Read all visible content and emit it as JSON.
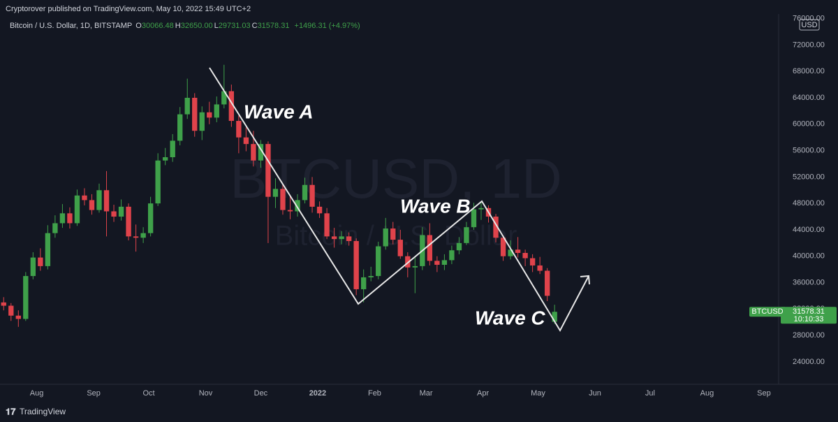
{
  "header": {
    "publisher_line": "Cryptorover published on TradingView.com, May 10, 2022 15:49 UTC+2",
    "symbol": "Bitcoin / U.S. Dollar, 1D, BITSTAMP",
    "ohlc": [
      {
        "label": "O",
        "value": "30066.48"
      },
      {
        "label": "H",
        "value": "32650.00"
      },
      {
        "label": "L",
        "value": "29731.03"
      },
      {
        "label": "C",
        "value": "31578.31"
      }
    ],
    "change": "+1496.31 (+4.97%)"
  },
  "footer": {
    "brand": "TradingView"
  },
  "chart_data": {
    "type": "candlestick",
    "currency": "USD",
    "watermark": "BTCUSD, 1D",
    "watermark_sub": "Bitcoin / U.S. Dollar",
    "up_color": "#3fa14a",
    "down_color": "#e0434b",
    "grid": false,
    "annotations": [
      "Wave A",
      "Wave B",
      "Wave C"
    ],
    "last_price": {
      "name": "BTCUSD",
      "value": 31578.31,
      "countdown": "10:10:33"
    },
    "xlim": [
      0,
      424
    ],
    "xticks": [
      {
        "value": 20,
        "label": "Aug"
      },
      {
        "value": 51,
        "label": "Sep"
      },
      {
        "value": 81,
        "label": "Oct"
      },
      {
        "value": 112,
        "label": "Nov"
      },
      {
        "value": 142,
        "label": "Dec"
      },
      {
        "value": 173,
        "label": "2022"
      },
      {
        "value": 204,
        "label": "Feb"
      },
      {
        "value": 232,
        "label": "Mar"
      },
      {
        "value": 263,
        "label": "Apr"
      },
      {
        "value": 293,
        "label": "May"
      },
      {
        "value": 324,
        "label": "Jun"
      },
      {
        "value": 354,
        "label": "Jul"
      },
      {
        "value": 385,
        "label": "Aug"
      },
      {
        "value": 416,
        "label": "Sep"
      }
    ],
    "ylim": [
      20600,
      76700
    ],
    "yticks": [
      {
        "value": 24000,
        "label": "24000.00"
      },
      {
        "value": 28000,
        "label": "28000.00"
      },
      {
        "value": 32000,
        "label": "32000.00"
      },
      {
        "value": 36000,
        "label": "36000.00"
      },
      {
        "value": 40000,
        "label": "40000.00"
      },
      {
        "value": 44000,
        "label": "44000.00"
      },
      {
        "value": 48000,
        "label": "48000.00"
      },
      {
        "value": 52000,
        "label": "52000.00"
      },
      {
        "value": 56000,
        "label": "56000.00"
      },
      {
        "value": 60000,
        "label": "60000.00"
      },
      {
        "value": 64000,
        "label": "64000.00"
      },
      {
        "value": 68000,
        "label": "68000.00"
      },
      {
        "value": 72000,
        "label": "72000.00"
      },
      {
        "value": 76000,
        "label": "76000.00"
      }
    ],
    "x": [
      2,
      6,
      10,
      14,
      18,
      22,
      26,
      30,
      34,
      38,
      42,
      46,
      50,
      54,
      58,
      62,
      66,
      70,
      74,
      78,
      82,
      86,
      90,
      94,
      98,
      102,
      106,
      110,
      114,
      118,
      122,
      126,
      130,
      134,
      138,
      142,
      146,
      150,
      154,
      158,
      162,
      166,
      170,
      174,
      178,
      182,
      186,
      190,
      194,
      198,
      202,
      206,
      210,
      214,
      218,
      222,
      226,
      230,
      234,
      238,
      242,
      246,
      250,
      254,
      258,
      262,
      266,
      270,
      274,
      278,
      282,
      286,
      290,
      294,
      298,
      302
    ],
    "open": [
      33000,
      32500,
      31000,
      30500,
      37000,
      39800,
      38500,
      43500,
      45000,
      46500,
      45000,
      49200,
      48500,
      47000,
      50000,
      46800,
      46000,
      47500,
      43000,
      42800,
      43500,
      48000,
      54500,
      55000,
      57500,
      61500,
      64000,
      59000,
      61800,
      61000,
      63000,
      65000,
      60500,
      58000,
      57000,
      54500,
      57000,
      49000,
      50200,
      47000,
      46800,
      48500,
      50800,
      47500,
      46500,
      43000,
      42600,
      43000,
      42300,
      35000,
      36800,
      37000,
      41500,
      44200,
      42500,
      40000,
      38300,
      38500,
      43200,
      39300,
      38700,
      39400,
      40900,
      42000,
      44400,
      47100,
      47300,
      46000,
      42800,
      40000,
      41000,
      40500,
      39700,
      38600,
      37800,
      30066.48
    ],
    "high": [
      33800,
      32900,
      31800,
      37600,
      40600,
      41200,
      44700,
      46200,
      47900,
      47400,
      50100,
      50300,
      49400,
      51000,
      52900,
      47800,
      48600,
      48000,
      44800,
      44400,
      49000,
      55600,
      56400,
      58500,
      62600,
      66900,
      64700,
      62700,
      63400,
      64200,
      69000,
      66000,
      61300,
      59500,
      59000,
      57600,
      57400,
      51800,
      50800,
      49300,
      49400,
      51900,
      52000,
      48300,
      47300,
      44300,
      43800,
      43600,
      42700,
      38000,
      38400,
      42200,
      45800,
      45200,
      44000,
      40600,
      39800,
      44400,
      45000,
      40000,
      40300,
      41600,
      42900,
      45200,
      48100,
      48200,
      47700,
      46400,
      43200,
      42400,
      42900,
      41000,
      40300,
      39900,
      38200,
      32650.0
    ],
    "low": [
      31800,
      30200,
      29300,
      30200,
      36500,
      37800,
      38000,
      42800,
      44300,
      44200,
      44600,
      47700,
      46300,
      46600,
      43000,
      45200,
      45400,
      42400,
      40700,
      42000,
      43000,
      47600,
      53800,
      54300,
      56800,
      60800,
      58100,
      57600,
      60000,
      60300,
      62400,
      59600,
      55600,
      55900,
      53600,
      53400,
      42000,
      47300,
      46300,
      45600,
      46000,
      48000,
      46600,
      45800,
      42600,
      41300,
      41800,
      41600,
      34100,
      33000,
      36200,
      36500,
      41000,
      41800,
      39600,
      36800,
      34400,
      37900,
      38600,
      37600,
      37900,
      38800,
      40300,
      41700,
      44000,
      45500,
      45100,
      42100,
      39300,
      39500,
      39800,
      38500,
      37600,
      37300,
      33200,
      29731.03
    ],
    "close": [
      32500,
      31000,
      30500,
      37000,
      39800,
      38500,
      43500,
      45000,
      46500,
      45000,
      49200,
      48500,
      47000,
      50000,
      46800,
      46000,
      47500,
      43000,
      42800,
      43500,
      48000,
      54500,
      55000,
      57500,
      61500,
      64000,
      59000,
      61800,
      61000,
      63000,
      65000,
      60500,
      58000,
      57000,
      54500,
      57000,
      49000,
      50200,
      47000,
      46800,
      48500,
      50800,
      47500,
      46500,
      43000,
      42600,
      43000,
      42300,
      35000,
      36800,
      37000,
      41500,
      44200,
      42500,
      40000,
      38300,
      38500,
      43200,
      39300,
      38700,
      39400,
      40900,
      42000,
      44400,
      47100,
      47300,
      46000,
      42800,
      40000,
      41000,
      40500,
      39700,
      38600,
      37800,
      34000,
      31578.31
    ]
  }
}
